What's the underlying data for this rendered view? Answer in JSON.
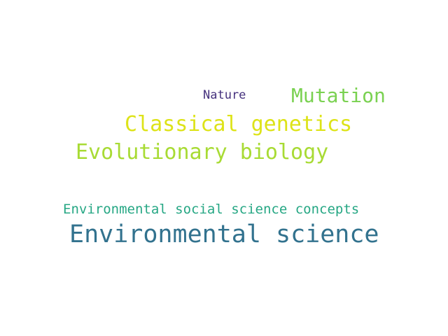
{
  "word_cloud": {
    "words": [
      {
        "text": "Nature",
        "color": "#46327e"
      },
      {
        "text": "Mutation",
        "color": "#7ad151"
      },
      {
        "text": "Classical genetics",
        "color": "#dde318"
      },
      {
        "text": "Evolutionary biology",
        "color": "#a8db34"
      },
      {
        "text": "Environmental social science concepts",
        "color": "#26a784"
      },
      {
        "text": "Environmental science",
        "color": "#32728e"
      }
    ]
  }
}
